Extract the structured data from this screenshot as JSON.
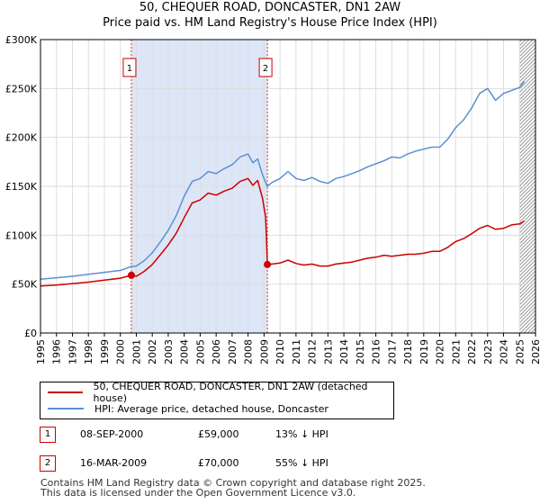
{
  "title_line1": "50, CHEQUER ROAD, DONCASTER, DN1 2AW",
  "title_line2": "Price paid vs. HM Land Registry's House Price Index (HPI)",
  "colors": {
    "property": "#cc0000",
    "hpi": "#5b8fd4",
    "shade": "#dde6f7",
    "grid": "#dddddd"
  },
  "chart_data": {
    "type": "line",
    "xlim": [
      1995,
      2026
    ],
    "ylim": [
      0,
      300000
    ],
    "y_ticks": [
      0,
      50000,
      100000,
      150000,
      200000,
      250000,
      300000
    ],
    "y_tick_labels": [
      "£0",
      "£50K",
      "£100K",
      "£150K",
      "£200K",
      "£250K",
      "£300K"
    ],
    "x_ticks": [
      1995,
      1996,
      1997,
      1998,
      1999,
      2000,
      2001,
      2002,
      2003,
      2004,
      2005,
      2006,
      2007,
      2008,
      2009,
      2010,
      2011,
      2012,
      2013,
      2014,
      2015,
      2016,
      2017,
      2018,
      2019,
      2020,
      2021,
      2022,
      2023,
      2024,
      2025,
      2026
    ],
    "x_tick_labels": [
      "1995",
      "1996",
      "1997",
      "1998",
      "1999",
      "2000",
      "2001",
      "2002",
      "2003",
      "2004",
      "2005",
      "2006",
      "2007",
      "2008",
      "2009",
      "2010",
      "2011",
      "2012",
      "2013",
      "2014",
      "2015",
      "2016",
      "2017",
      "2018",
      "2019",
      "2020",
      "2021",
      "2022",
      "2023",
      "2024",
      "2025",
      "2026"
    ],
    "shaded_range": [
      2000.69,
      2009.21
    ],
    "hatch_from": 2025.0,
    "series": [
      {
        "name": "50, CHEQUER ROAD, DONCASTER, DN1 2AW (detached house)",
        "color": "#cc0000",
        "x": [
          1995,
          1996,
          1997,
          1998,
          1999,
          2000,
          2000.69,
          2001,
          2001.5,
          2002,
          2002.5,
          2003,
          2003.5,
          2004,
          2004.5,
          2005,
          2005.5,
          2006,
          2006.5,
          2007,
          2007.5,
          2008,
          2008.3,
          2008.6,
          2008.9,
          2009.1,
          2009.21,
          2009.5,
          2010,
          2010.5,
          2011,
          2011.5,
          2012,
          2012.5,
          2013,
          2013.5,
          2014,
          2014.5,
          2015,
          2015.5,
          2016,
          2016.5,
          2017,
          2017.5,
          2018,
          2018.5,
          2019,
          2019.5,
          2020,
          2020.5,
          2021,
          2021.5,
          2022,
          2022.5,
          2023,
          2023.5,
          2024,
          2024.5,
          2025,
          2025.3
        ],
        "y": [
          48000,
          49000,
          50500,
          52000,
          54000,
          56000,
          59000,
          58000,
          63000,
          70000,
          80000,
          90000,
          102000,
          118000,
          133000,
          136000,
          143000,
          141000,
          145000,
          148000,
          155000,
          158000,
          151000,
          156000,
          138000,
          118000,
          70000,
          70500,
          71500,
          74500,
          71000,
          69500,
          70500,
          68500,
          68500,
          70500,
          71500,
          72500,
          74500,
          76500,
          77500,
          79500,
          78500,
          79500,
          80500,
          80500,
          81500,
          83500,
          83500,
          87500,
          93500,
          96500,
          101500,
          107000,
          110000,
          106000,
          107000,
          110500,
          111500,
          114500
        ]
      },
      {
        "name": "HPI: Average price, detached house, Doncaster",
        "color": "#5b8fd4",
        "x": [
          1995,
          1996,
          1997,
          1998,
          1999,
          2000,
          2000.69,
          2001,
          2001.5,
          2002,
          2002.5,
          2003,
          2003.5,
          2004,
          2004.5,
          2005,
          2005.5,
          2006,
          2006.5,
          2007,
          2007.5,
          2008,
          2008.3,
          2008.6,
          2008.9,
          2009.2,
          2009.5,
          2010,
          2010.5,
          2011,
          2011.5,
          2012,
          2012.5,
          2013,
          2013.5,
          2014,
          2014.5,
          2015,
          2015.5,
          2016,
          2016.5,
          2017,
          2017.5,
          2018,
          2018.5,
          2019,
          2019.5,
          2020,
          2020.5,
          2021,
          2021.5,
          2022,
          2022.5,
          2023,
          2023.5,
          2024,
          2024.5,
          2025,
          2025.3
        ],
        "y": [
          55000,
          56500,
          58000,
          60000,
          62000,
          64000,
          68000,
          68500,
          74000,
          82000,
          93000,
          105000,
          120000,
          140000,
          155000,
          158000,
          165000,
          163000,
          168000,
          172000,
          180000,
          183000,
          174000,
          178000,
          162000,
          150000,
          154000,
          158000,
          165000,
          158000,
          156000,
          159000,
          155000,
          153000,
          158000,
          160000,
          163000,
          166000,
          170000,
          173000,
          176000,
          180000,
          179000,
          183000,
          186000,
          188000,
          190000,
          190000,
          198000,
          210000,
          218000,
          230000,
          245000,
          250000,
          238000,
          245000,
          248000,
          251000,
          257000
        ]
      }
    ],
    "sales": [
      {
        "id": "1",
        "x": 2000.69,
        "y": 59000
      },
      {
        "id": "2",
        "x": 2009.21,
        "y": 70000
      }
    ]
  },
  "legend": {
    "property_label": "50, CHEQUER ROAD, DONCASTER, DN1 2AW (detached house)",
    "hpi_label": "HPI: Average price, detached house, Doncaster"
  },
  "transactions": [
    {
      "num": "1",
      "date": "08-SEP-2000",
      "price": "£59,000",
      "hpi": "13% ↓ HPI"
    },
    {
      "num": "2",
      "date": "16-MAR-2009",
      "price": "£70,000",
      "hpi": "55% ↓ HPI"
    }
  ],
  "footer": {
    "line1": "Contains HM Land Registry data © Crown copyright and database right 2025.",
    "line2": "This data is licensed under the Open Government Licence v3.0."
  }
}
